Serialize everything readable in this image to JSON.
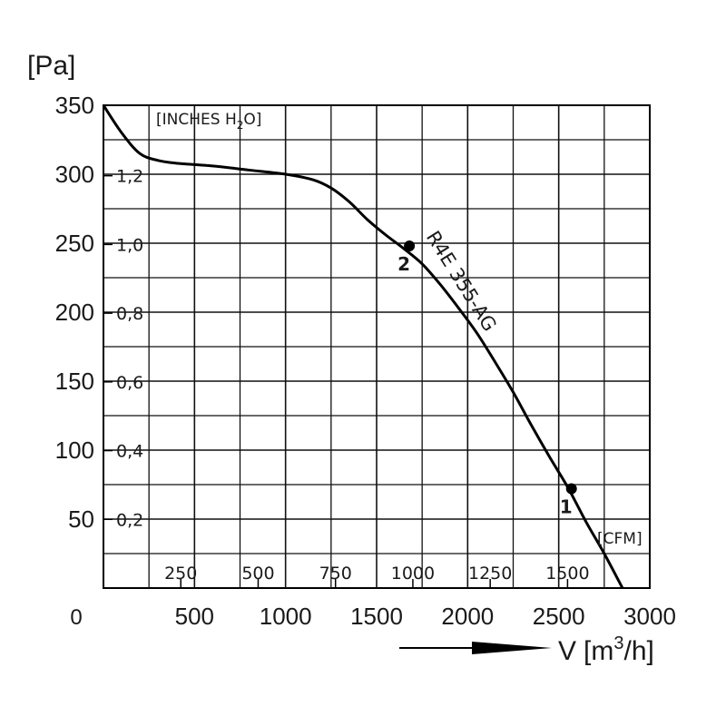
{
  "chart_data": {
    "type": "line",
    "title": "",
    "ylabel": "[Pa]",
    "xlabel_parts": {
      "v": "V",
      "unit": "m",
      "exp": "3",
      "tail": "/h"
    },
    "secondary_ylabel": {
      "base": "[INCHES H",
      "sub": "2",
      "end": "O]"
    },
    "secondary_xlabel": "[CFM]",
    "origin_label": "0",
    "x_ticks": [
      "500",
      "1000",
      "1500",
      "2000",
      "2500",
      "3000"
    ],
    "y_ticks": [
      "50",
      "100",
      "150",
      "200",
      "250",
      "300",
      "350"
    ],
    "cfm_ticks": [
      "250",
      "500",
      "750",
      "1000",
      "1250",
      "1500"
    ],
    "inh2o_ticks": [
      "0,2",
      "0,4",
      "0,6",
      "0,8",
      "1,0",
      "1,2"
    ],
    "xlim": [
      0,
      3000
    ],
    "ylim": [
      0,
      350
    ],
    "grid": true,
    "series": [
      {
        "name": "R4E 355-AG",
        "x": [
          0,
          100,
          200,
          300,
          400,
          600,
          800,
          1000,
          1150,
          1250,
          1350,
          1450,
          1550,
          1650,
          1750,
          1850,
          1950,
          2050,
          2150,
          2250,
          2350,
          2450,
          2550,
          2650,
          2750,
          2850
        ],
        "y": [
          350,
          330,
          315,
          310,
          308,
          306,
          303,
          300,
          296,
          290,
          280,
          267,
          256,
          246,
          235,
          220,
          203,
          185,
          164,
          142,
          118,
          95,
          73,
          48,
          25,
          0
        ]
      }
    ],
    "points": [
      {
        "label": "2",
        "x": 1680,
        "y": 248
      },
      {
        "label": "1",
        "x": 2570,
        "y": 72
      }
    ]
  }
}
